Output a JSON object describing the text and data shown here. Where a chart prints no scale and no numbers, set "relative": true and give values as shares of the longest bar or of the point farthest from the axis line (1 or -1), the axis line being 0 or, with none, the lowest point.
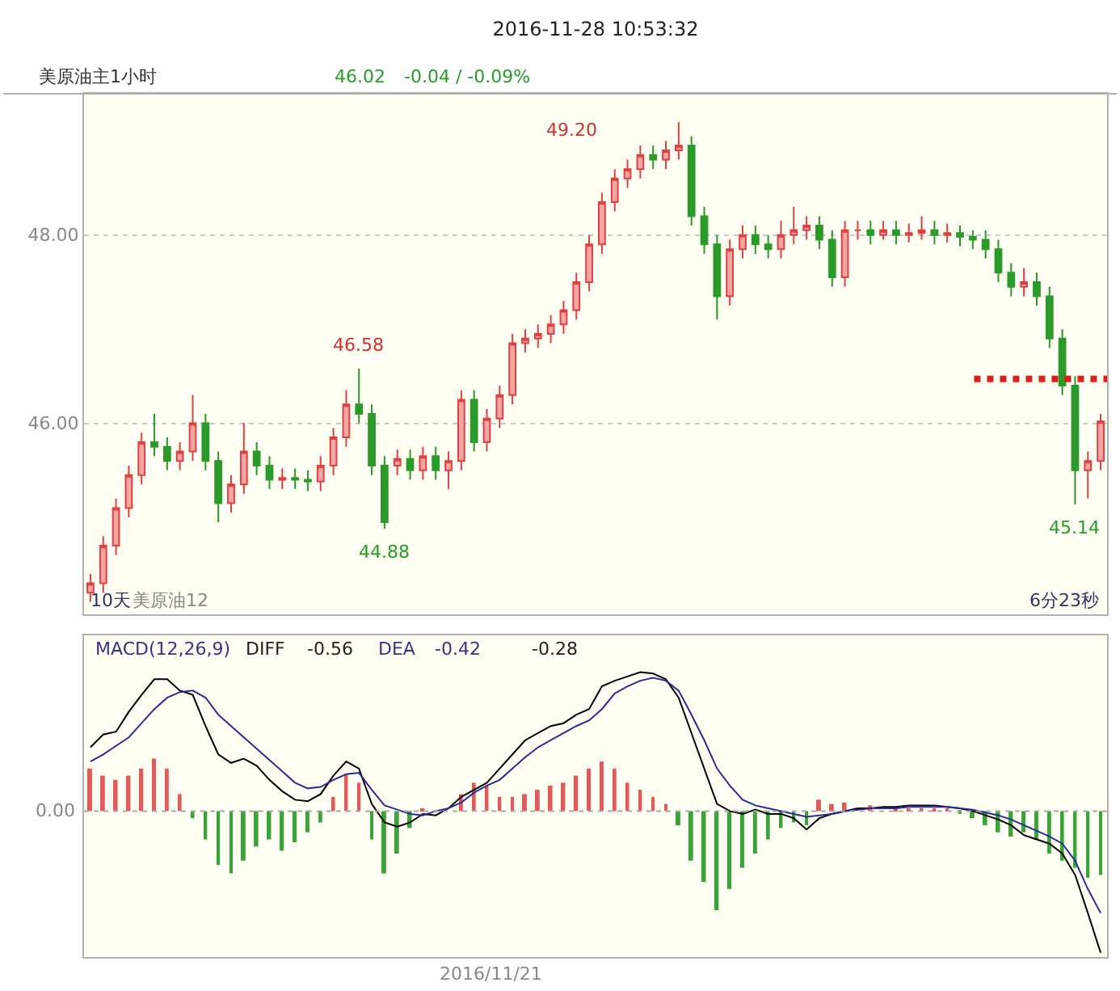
{
  "chart_data": [
    {
      "type": "candlestick",
      "title": "2016-11-28 10:53:32",
      "categories": [
        null,
        null,
        null,
        null,
        null,
        null,
        null,
        null,
        null,
        null,
        null,
        null,
        null,
        null,
        null,
        null,
        null,
        null,
        null,
        null,
        null,
        null,
        null,
        null,
        null,
        null,
        null,
        null,
        null,
        null,
        null,
        null,
        null,
        null,
        null,
        null,
        null,
        null,
        null,
        null,
        null,
        null,
        null,
        null,
        null,
        null,
        null,
        null,
        null,
        null,
        null,
        null,
        null,
        null,
        null,
        null,
        null,
        null,
        null,
        null,
        null,
        null,
        null,
        null,
        null,
        null,
        null,
        null,
        null,
        null,
        null,
        null,
        null,
        null,
        null,
        null,
        null,
        null,
        null,
        null
      ],
      "ohlc": [
        [
          44.2,
          44.4,
          44.1,
          44.3
        ],
        [
          44.3,
          44.8,
          44.2,
          44.7
        ],
        [
          44.7,
          45.2,
          44.6,
          45.1
        ],
        [
          45.1,
          45.55,
          45.0,
          45.45
        ],
        [
          45.45,
          45.9,
          45.35,
          45.8
        ],
        [
          45.8,
          46.1,
          45.65,
          45.75
        ],
        [
          45.75,
          45.85,
          45.5,
          45.6
        ],
        [
          45.6,
          45.8,
          45.5,
          45.7
        ],
        [
          45.7,
          46.3,
          45.6,
          46.0
        ],
        [
          46.0,
          46.1,
          45.5,
          45.6
        ],
        [
          45.6,
          45.7,
          44.95,
          45.15
        ],
        [
          45.15,
          45.45,
          45.05,
          45.35
        ],
        [
          45.35,
          46.0,
          45.25,
          45.7
        ],
        [
          45.7,
          45.8,
          45.45,
          45.55
        ],
        [
          45.55,
          45.65,
          45.3,
          45.4
        ],
        [
          45.4,
          45.52,
          45.3,
          45.42
        ],
        [
          45.42,
          45.52,
          45.3,
          45.4
        ],
        [
          45.4,
          45.5,
          45.28,
          45.38
        ],
        [
          45.38,
          45.65,
          45.28,
          45.55
        ],
        [
          45.55,
          45.95,
          45.45,
          45.85
        ],
        [
          45.85,
          46.35,
          45.75,
          46.2
        ],
        [
          46.2,
          46.58,
          46.0,
          46.1
        ],
        [
          46.1,
          46.2,
          45.45,
          45.55
        ],
        [
          45.55,
          45.65,
          44.88,
          44.95
        ],
        [
          45.55,
          45.72,
          45.45,
          45.62
        ],
        [
          45.62,
          45.72,
          45.4,
          45.5
        ],
        [
          45.5,
          45.75,
          45.4,
          45.65
        ],
        [
          45.65,
          45.75,
          45.4,
          45.5
        ],
        [
          45.5,
          45.7,
          45.3,
          45.6
        ],
        [
          45.6,
          46.35,
          45.5,
          46.25
        ],
        [
          46.25,
          46.35,
          45.7,
          45.8
        ],
        [
          45.8,
          46.15,
          45.7,
          46.05
        ],
        [
          46.05,
          46.4,
          45.95,
          46.3
        ],
        [
          46.3,
          46.95,
          46.2,
          46.85
        ],
        [
          46.85,
          47.0,
          46.75,
          46.9
        ],
        [
          46.9,
          47.05,
          46.8,
          46.95
        ],
        [
          46.95,
          47.15,
          46.85,
          47.05
        ],
        [
          47.05,
          47.3,
          46.95,
          47.2
        ],
        [
          47.2,
          47.6,
          47.1,
          47.5
        ],
        [
          47.5,
          48.0,
          47.4,
          47.9
        ],
        [
          47.9,
          48.45,
          47.8,
          48.35
        ],
        [
          48.35,
          48.7,
          48.25,
          48.6
        ],
        [
          48.6,
          48.8,
          48.5,
          48.7
        ],
        [
          48.7,
          48.95,
          48.6,
          48.85
        ],
        [
          48.85,
          48.95,
          48.7,
          48.8
        ],
        [
          48.8,
          49.0,
          48.7,
          48.9
        ],
        [
          48.9,
          49.2,
          48.8,
          48.95
        ],
        [
          48.95,
          49.05,
          48.1,
          48.2
        ],
        [
          48.2,
          48.3,
          47.8,
          47.9
        ],
        [
          47.9,
          48.0,
          47.1,
          47.35
        ],
        [
          47.35,
          47.95,
          47.25,
          47.85
        ],
        [
          47.85,
          48.1,
          47.75,
          48.0
        ],
        [
          48.0,
          48.1,
          47.8,
          47.9
        ],
        [
          47.9,
          48.0,
          47.75,
          47.85
        ],
        [
          47.85,
          48.15,
          47.75,
          48.0
        ],
        [
          48.0,
          48.3,
          47.9,
          48.05
        ],
        [
          48.05,
          48.2,
          47.95,
          48.1
        ],
        [
          48.1,
          48.2,
          47.85,
          47.95
        ],
        [
          47.95,
          48.05,
          47.45,
          47.55
        ],
        [
          47.55,
          48.15,
          47.45,
          48.05
        ],
        [
          48.05,
          48.15,
          47.95,
          48.05
        ],
        [
          48.05,
          48.15,
          47.9,
          48.0
        ],
        [
          48.0,
          48.15,
          47.95,
          48.05
        ],
        [
          48.05,
          48.15,
          47.9,
          48.0
        ],
        [
          48.0,
          48.12,
          47.92,
          48.02
        ],
        [
          48.02,
          48.2,
          47.95,
          48.05
        ],
        [
          48.05,
          48.15,
          47.9,
          48.0
        ],
        [
          48.0,
          48.12,
          47.92,
          48.02
        ],
        [
          48.02,
          48.1,
          47.88,
          47.98
        ],
        [
          47.98,
          48.05,
          47.85,
          47.95
        ],
        [
          47.95,
          48.05,
          47.75,
          47.85
        ],
        [
          47.85,
          47.95,
          47.5,
          47.6
        ],
        [
          47.6,
          47.7,
          47.35,
          47.45
        ],
        [
          47.45,
          47.65,
          47.35,
          47.5
        ],
        [
          47.5,
          47.6,
          47.25,
          47.35
        ],
        [
          47.35,
          47.45,
          46.8,
          46.9
        ],
        [
          46.9,
          47.0,
          46.3,
          46.4
        ],
        [
          46.4,
          46.5,
          45.14,
          45.5
        ],
        [
          45.5,
          45.7,
          45.2,
          45.6
        ],
        [
          45.6,
          46.1,
          45.5,
          46.02
        ]
      ],
      "ylim": [
        43.97,
        49.5
      ],
      "yticks": [
        {
          "value": 48,
          "label": "48.00"
        },
        {
          "value": 46,
          "label": "46.00"
        }
      ],
      "grid": "y",
      "tick_labels": "y",
      "ref_lines": [
        {
          "axis": "y",
          "value": 46.47,
          "color": "#e02020",
          "line_style": "dotted"
        }
      ],
      "annotations": [
        "美原油主1小时",
        "46.02",
        "-0.04 / -0.09%",
        "10天",
        "美原油12",
        "6分23秒",
        "49.20",
        {
          "text": "46.58",
          "y": 46.58
        },
        {
          "text": "44.88",
          "y": 44.88
        },
        {
          "text": "45.14",
          "y": 45.14
        }
      ]
    },
    {
      "type": "line",
      "relative": true,
      "categories": [
        null,
        null,
        null,
        null,
        null,
        null,
        null,
        null,
        null,
        null,
        null,
        null,
        null,
        null,
        null,
        null,
        null,
        null,
        null,
        null,
        null,
        null,
        null,
        null,
        null,
        null,
        null,
        null,
        null,
        null,
        null,
        null,
        null,
        null,
        null,
        null,
        null,
        null,
        null,
        null,
        null,
        null,
        null,
        null,
        null,
        null,
        null,
        null,
        null,
        null,
        null,
        null,
        null,
        null,
        null,
        null,
        null,
        null,
        null,
        null,
        null,
        null,
        null,
        null,
        null,
        null,
        null,
        null,
        null,
        null,
        null,
        null,
        null,
        null,
        null,
        null,
        null,
        null,
        null,
        null
      ],
      "series": [
        {
          "type": "bar",
          "values": [
            0.3,
            0.25,
            0.22,
            0.25,
            0.3,
            0.37,
            0.3,
            0.12,
            -0.05,
            -0.2,
            -0.38,
            -0.44,
            -0.35,
            -0.25,
            -0.2,
            -0.28,
            -0.22,
            -0.15,
            -0.08,
            0.1,
            0.26,
            0.2,
            -0.2,
            -0.44,
            -0.3,
            -0.12,
            0.02,
            null,
            null,
            0.12,
            0.2,
            0.18,
            0.1,
            0.1,
            0.12,
            0.15,
            0.18,
            0.2,
            0.25,
            0.3,
            0.35,
            0.3,
            0.2,
            0.15,
            0.1,
            0.05,
            -0.1,
            -0.35,
            -0.5,
            -0.7,
            -0.55,
            -0.4,
            -0.3,
            -0.2,
            -0.12,
            -0.08,
            -0.1,
            0.08,
            0.05,
            0.06,
            null,
            0.04,
            null,
            0.02,
            0.01,
            0.01,
            0.01,
            0.01,
            -0.02,
            -0.05,
            -0.1,
            -0.15,
            -0.18,
            -0.15,
            -0.2,
            -0.3,
            -0.35,
            -0.4,
            -0.47,
            -0.45
          ],
          "colors": [
            "#e05a5a",
            "#e05a5a",
            "#e05a5a",
            "#e05a5a",
            "#e05a5a",
            "#e05a5a",
            "#e05a5a",
            "#e05a5a",
            "#3aa33a",
            "#3aa33a",
            "#3aa33a",
            "#3aa33a",
            "#3aa33a",
            "#3aa33a",
            "#3aa33a",
            "#3aa33a",
            "#3aa33a",
            "#3aa33a",
            "#3aa33a",
            "#e05a5a",
            "#e05a5a",
            "#e05a5a",
            "#3aa33a",
            "#3aa33a",
            "#3aa33a",
            "#3aa33a",
            "#e05a5a",
            "#3aa33a",
            "#e05a5a",
            "#e05a5a",
            "#e05a5a",
            "#e05a5a",
            "#e05a5a",
            "#e05a5a",
            "#e05a5a",
            "#e05a5a",
            "#e05a5a",
            "#e05a5a",
            "#e05a5a",
            "#e05a5a",
            "#e05a5a",
            "#e05a5a",
            "#e05a5a",
            "#e05a5a",
            "#e05a5a",
            "#e05a5a",
            "#3aa33a",
            "#3aa33a",
            "#3aa33a",
            "#3aa33a",
            "#3aa33a",
            "#3aa33a",
            "#3aa33a",
            "#3aa33a",
            "#3aa33a",
            "#3aa33a",
            "#3aa33a",
            "#e05a5a",
            "#e05a5a",
            "#e05a5a",
            "#e05a5a",
            "#e05a5a",
            "#e05a5a",
            "#e05a5a",
            "#e05a5a",
            "#e05a5a",
            "#e05a5a",
            "#e05a5a",
            "#3aa33a",
            "#3aa33a",
            "#3aa33a",
            "#3aa33a",
            "#3aa33a",
            "#3aa33a",
            "#3aa33a",
            "#3aa33a",
            "#3aa33a",
            "#3aa33a",
            "#3aa33a",
            "#3aa33a"
          ]
        },
        {
          "type": "line",
          "color": "#000000",
          "values": [
            0.45,
            0.54,
            0.56,
            0.7,
            0.82,
            0.93,
            0.93,
            0.85,
            0.82,
            0.6,
            0.4,
            0.34,
            0.37,
            0.32,
            0.22,
            0.14,
            0.08,
            0.07,
            0.12,
            0.25,
            0.35,
            0.3,
            0.05,
            -0.08,
            -0.11,
            -0.08,
            -0.02,
            -0.03,
            0.02,
            0.1,
            0.15,
            0.2,
            0.3,
            0.4,
            0.5,
            0.55,
            0.6,
            0.62,
            0.68,
            0.72,
            0.88,
            0.92,
            0.95,
            0.98,
            0.97,
            0.93,
            0.8,
            0.55,
            0.3,
            0.05,
            0.0,
            -0.02,
            0.01,
            -0.02,
            -0.02,
            -0.05,
            -0.13,
            -0.05,
            -0.02,
            0.0,
            0.02,
            0.02,
            0.03,
            0.03,
            0.04,
            0.04,
            0.04,
            0.03,
            0.02,
            0.0,
            -0.03,
            -0.06,
            -0.1,
            -0.17,
            -0.2,
            -0.23,
            -0.3,
            -0.45,
            -0.72,
            -1
          ]
        },
        {
          "type": "line",
          "color": "#2b2b9a",
          "values": [
            0.35,
            0.4,
            0.46,
            0.52,
            0.62,
            0.72,
            0.8,
            0.84,
            0.85,
            0.8,
            0.68,
            0.6,
            0.52,
            0.44,
            0.36,
            0.28,
            0.2,
            0.16,
            0.17,
            0.22,
            0.26,
            0.27,
            0.15,
            0.04,
            0.01,
            -0.02,
            -0.03,
            0.0,
            0.02,
            0.06,
            0.13,
            0.18,
            0.22,
            0.3,
            0.38,
            0.45,
            0.5,
            0.55,
            0.6,
            0.64,
            0.72,
            0.83,
            0.88,
            0.92,
            0.94,
            0.92,
            0.85,
            0.68,
            0.5,
            0.3,
            0.18,
            0.08,
            0.04,
            0.02,
            0.0,
            -0.02,
            -0.04,
            -0.03,
            -0.02,
            0.0,
            0.01,
            0.02,
            0.02,
            0.02,
            0.03,
            0.03,
            0.03,
            0.03,
            0.02,
            0.01,
            -0.01,
            -0.03,
            -0.06,
            -0.1,
            -0.14,
            -0.18,
            -0.23,
            -0.35,
            -0.55,
            -0.72
          ]
        }
      ],
      "ref_lines": [
        {
          "axis": "y",
          "value": 0,
          "label": "0.00",
          "color": "#aaaaaa",
          "line_style": "dotted"
        }
      ],
      "annotations": [
        "MACD(12,26,9)",
        "DIFF",
        "-0.56",
        "DEA",
        "-0.42",
        "-0.28",
        "2016/11/21"
      ]
    }
  ]
}
